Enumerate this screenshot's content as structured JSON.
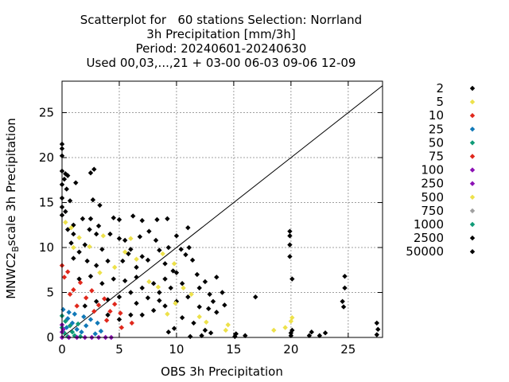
{
  "title_lines": [
    "Scatterplot for   60 stations Selection: Norrland",
    "3h Precipitation [mm/3h]",
    "Period: 20240601-20240630",
    "Used 00,03,...,21 + 03-00 06-03 09-06 12-09"
  ],
  "chart_data": {
    "type": "scatter",
    "title": "Scatterplot for   60 stations Selection: Norrland",
    "xlabel": "OBS 3h Precipitation",
    "ylabel_main": "MNWC2",
    "ylabel_sub": "B",
    "ylabel_rest": "scale 3h Precipitation",
    "xlim": [
      0,
      28
    ],
    "ylim": [
      0,
      28.5
    ],
    "xticks": [
      0,
      5,
      10,
      15,
      20,
      25
    ],
    "yticks": [
      0,
      5,
      10,
      15,
      20,
      25
    ],
    "grid": true,
    "reference_line": "y = x",
    "legend_placement": "right",
    "legend": [
      {
        "label": "2",
        "color": "#000000"
      },
      {
        "label": "5",
        "color": "#ede14a"
      },
      {
        "label": "10",
        "color": "#e0281c"
      },
      {
        "label": "25",
        "color": "#1179b8"
      },
      {
        "label": "50",
        "color": "#0f9b77"
      },
      {
        "label": "75",
        "color": "#e0281c"
      },
      {
        "label": "100",
        "color": "#8c12b5"
      },
      {
        "label": "250",
        "color": "#8c12b5"
      },
      {
        "label": "500",
        "color": "#ede14a"
      },
      {
        "label": "750",
        "color": "#a0a0a0"
      },
      {
        "label": "1000",
        "color": "#0f9b77"
      },
      {
        "label": "2500",
        "color": "#000000"
      },
      {
        "label": "50000",
        "color": "#000000"
      }
    ],
    "series": [
      {
        "color": "#000000",
        "points": [
          [
            0,
            21.5
          ],
          [
            0,
            21
          ],
          [
            0,
            20.2
          ],
          [
            0,
            18.5
          ],
          [
            0.3,
            18.2
          ],
          [
            0.5,
            18
          ],
          [
            0.2,
            17.6
          ],
          [
            0,
            17
          ],
          [
            0.4,
            16.5
          ],
          [
            0,
            15.5
          ],
          [
            0.7,
            15.2
          ],
          [
            0,
            14.5
          ],
          [
            0.3,
            14
          ],
          [
            0,
            13.6
          ],
          [
            1.8,
            13.2
          ],
          [
            2.5,
            13.2
          ],
          [
            2.5,
            18.3
          ],
          [
            2.8,
            18.7
          ],
          [
            1.2,
            17.2
          ],
          [
            3.3,
            14.7
          ],
          [
            2.7,
            15.3
          ],
          [
            1,
            12.5
          ],
          [
            2.4,
            12
          ],
          [
            3,
            11.5
          ],
          [
            4.5,
            13.3
          ],
          [
            5,
            13.1
          ],
          [
            6.2,
            13.5
          ],
          [
            7,
            13
          ],
          [
            8.3,
            13.1
          ],
          [
            9.2,
            13.2
          ],
          [
            0.5,
            12
          ],
          [
            1,
            11.5
          ],
          [
            0.8,
            10.5
          ],
          [
            2,
            10.3
          ],
          [
            1.5,
            9.5
          ],
          [
            3.5,
            9.8
          ],
          [
            5,
            11
          ],
          [
            5.5,
            10.8
          ],
          [
            6,
            9.8
          ],
          [
            7,
            9
          ],
          [
            8.5,
            9.7
          ],
          [
            9.3,
            10
          ],
          [
            10,
            11.3
          ],
          [
            11,
            12.2
          ],
          [
            11.1,
            10
          ],
          [
            10.4,
            9.8
          ],
          [
            1,
            8.8
          ],
          [
            2.2,
            8.5
          ],
          [
            3,
            8
          ],
          [
            4,
            8.5
          ],
          [
            5.3,
            8.5
          ],
          [
            6.5,
            7.8
          ],
          [
            7.5,
            8.6
          ],
          [
            9,
            8.2
          ],
          [
            10,
            7.2
          ],
          [
            9,
            6.5
          ],
          [
            8,
            6
          ],
          [
            7,
            5.5
          ],
          [
            6,
            5
          ],
          [
            5,
            4.5
          ],
          [
            4,
            4.2
          ],
          [
            3,
            4
          ],
          [
            2,
            3.5
          ],
          [
            1.5,
            6.5
          ],
          [
            2.5,
            6.8
          ],
          [
            3.5,
            6
          ],
          [
            4.5,
            6.5
          ],
          [
            5.5,
            6.3
          ],
          [
            6.5,
            6.7
          ],
          [
            8.5,
            5
          ],
          [
            9.5,
            5.5
          ],
          [
            10.5,
            6
          ],
          [
            11.8,
            7
          ],
          [
            12.5,
            6.2
          ],
          [
            13.5,
            6.7
          ],
          [
            12,
            5.5
          ],
          [
            11,
            4.5
          ],
          [
            10,
            4
          ],
          [
            9,
            3.5
          ],
          [
            8,
            3
          ],
          [
            7,
            2.5
          ],
          [
            6,
            2.5
          ],
          [
            5,
            2
          ],
          [
            4,
            2.5
          ],
          [
            6.5,
            3.8
          ],
          [
            7.5,
            4.4
          ],
          [
            8.5,
            4.1
          ],
          [
            12,
            3.4
          ],
          [
            12.8,
            3.2
          ],
          [
            14.2,
            3.6
          ],
          [
            13.5,
            2.8
          ],
          [
            10.5,
            2.2
          ],
          [
            11.5,
            1.6
          ],
          [
            9.8,
            1
          ],
          [
            12.5,
            0.8
          ],
          [
            13,
            0.5
          ],
          [
            12.2,
            0.2
          ],
          [
            11.2,
            0.1
          ],
          [
            9.3,
            0.6
          ],
          [
            15.2,
            0.4
          ],
          [
            15.1,
            0.1
          ],
          [
            16,
            0.2
          ],
          [
            20.1,
            0.8
          ],
          [
            20,
            0.5
          ],
          [
            20,
            0.2
          ],
          [
            21.8,
            0.6
          ],
          [
            21.6,
            0.2
          ],
          [
            16.9,
            4.5
          ],
          [
            19.9,
            11.8
          ],
          [
            19.9,
            11.3
          ],
          [
            19.9,
            10.3
          ],
          [
            19.9,
            9
          ],
          [
            20.1,
            6.5
          ],
          [
            24.7,
            6.8
          ],
          [
            24.7,
            5.5
          ],
          [
            24.5,
            4
          ],
          [
            24.6,
            3.4
          ],
          [
            27.5,
            1.6
          ],
          [
            27.6,
            0.9
          ],
          [
            27.5,
            0.3
          ],
          [
            22.5,
            0.2
          ],
          [
            23,
            0.5
          ],
          [
            13.2,
            4
          ],
          [
            14,
            5
          ],
          [
            12.9,
            4.8
          ],
          [
            4.2,
            11.5
          ],
          [
            6.8,
            11.2
          ],
          [
            8.2,
            10.8
          ],
          [
            7.6,
            11.8
          ],
          [
            5.8,
            9.3
          ],
          [
            3.2,
            12.4
          ],
          [
            9.7,
            7.4
          ],
          [
            11.4,
            8.6
          ],
          [
            10.8,
            9.2
          ]
        ]
      },
      {
        "color": "#ede14a",
        "points": [
          [
            0.3,
            12.8
          ],
          [
            0.8,
            12.2
          ],
          [
            1.5,
            11.1
          ],
          [
            1,
            10
          ],
          [
            2.4,
            10.1
          ],
          [
            3.6,
            11.3
          ],
          [
            6,
            11
          ],
          [
            5.5,
            9.5
          ],
          [
            6.5,
            8.7
          ],
          [
            8.8,
            9.3
          ],
          [
            9.8,
            8.2
          ],
          [
            10.6,
            5.5
          ],
          [
            9.9,
            3.8
          ],
          [
            11.3,
            4.8
          ],
          [
            12,
            2.3
          ],
          [
            12.6,
            1.7
          ],
          [
            14.3,
            0.8
          ],
          [
            14.5,
            1.4
          ],
          [
            18.5,
            0.8
          ],
          [
            20.1,
            2.2
          ],
          [
            20,
            1.8
          ],
          [
            19.5,
            1.1
          ],
          [
            4.6,
            7.8
          ],
          [
            7.6,
            6.2
          ],
          [
            8.4,
            5.6
          ],
          [
            9.2,
            2.6
          ],
          [
            3.3,
            7.2
          ]
        ]
      },
      {
        "color": "#e0281c",
        "points": [
          [
            0,
            8
          ],
          [
            0.2,
            6.7
          ],
          [
            0.5,
            7.3
          ],
          [
            1,
            5.3
          ],
          [
            1.6,
            6.1
          ],
          [
            2.1,
            4.4
          ],
          [
            2.6,
            5.2
          ],
          [
            3.2,
            3.6
          ],
          [
            3.7,
            4.3
          ],
          [
            4.2,
            2.9
          ],
          [
            4.6,
            3.7
          ],
          [
            5.1,
            2.7
          ],
          [
            0.7,
            4.8
          ],
          [
            1.3,
            3.5
          ],
          [
            2.8,
            2.9
          ],
          [
            3.9,
            1.9
          ],
          [
            5.2,
            1.1
          ],
          [
            6.1,
            1.6
          ]
        ]
      },
      {
        "color": "#1179b8",
        "points": [
          [
            0.1,
            3.1
          ],
          [
            0.5,
            2.1
          ],
          [
            0.9,
            1.6
          ],
          [
            1.3,
            0.9
          ],
          [
            1.7,
            0.6
          ],
          [
            2.1,
            1.3
          ],
          [
            2.5,
            2
          ],
          [
            3.1,
            1.6
          ],
          [
            3.4,
            0.7
          ],
          [
            1.1,
            2.6
          ],
          [
            0.4,
            1.1
          ],
          [
            2.9,
            0.4
          ],
          [
            1.9,
            2.3
          ],
          [
            0.6,
            2.8
          ]
        ]
      },
      {
        "color": "#0f9b77",
        "points": [
          [
            0,
            1.1
          ],
          [
            0.2,
            0.5
          ],
          [
            0.5,
            0.1
          ],
          [
            0.9,
            0.6
          ],
          [
            1.1,
            0.2
          ],
          [
            1.6,
            0.1
          ],
          [
            0,
            2.4
          ],
          [
            0.3,
            1.8
          ],
          [
            1.4,
            1.5
          ],
          [
            0.7,
            1.3
          ]
        ]
      },
      {
        "color": "#8c12b5",
        "points": [
          [
            0,
            0
          ],
          [
            0.6,
            0
          ],
          [
            1.3,
            0
          ],
          [
            2,
            0
          ],
          [
            2.6,
            0
          ],
          [
            3.2,
            0
          ],
          [
            3.8,
            0
          ],
          [
            4.3,
            0
          ],
          [
            0,
            0.6
          ],
          [
            0.1,
            0.9
          ],
          [
            0,
            1.4
          ]
        ]
      }
    ]
  }
}
